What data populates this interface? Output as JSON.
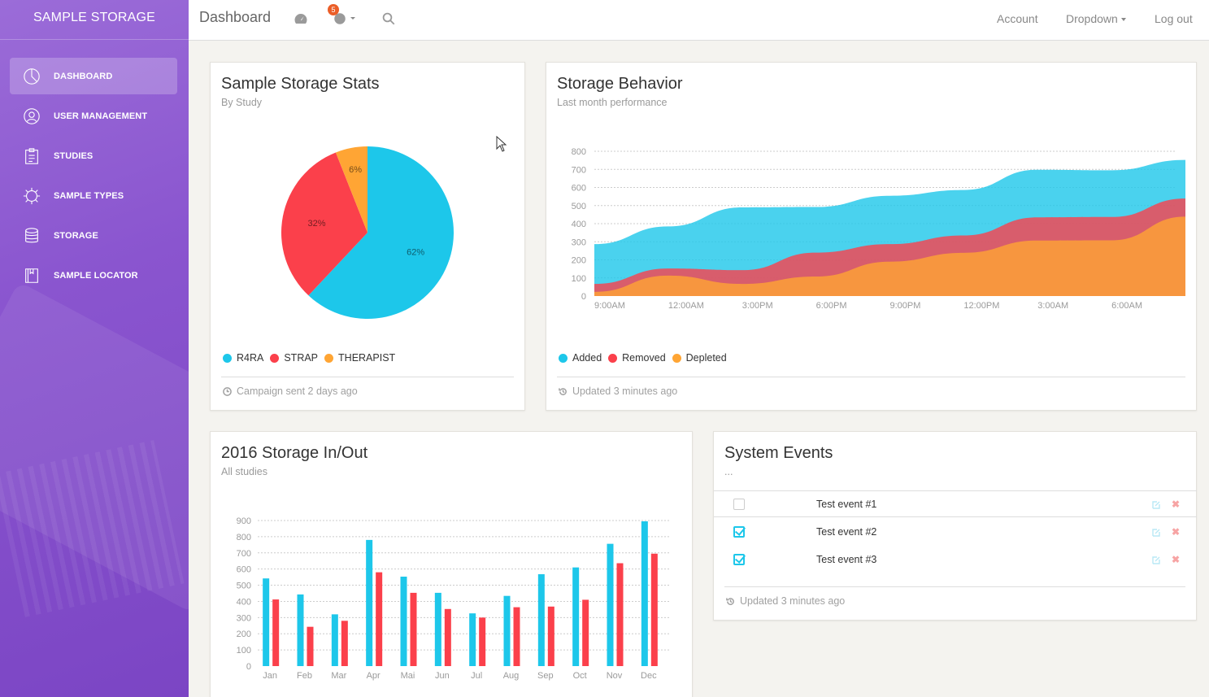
{
  "brand": "SAMPLE STORAGE",
  "sidebar": {
    "items": [
      {
        "label": "DASHBOARD",
        "icon": "pie-chart-icon",
        "active": true
      },
      {
        "label": "USER MANAGEMENT",
        "icon": "user-icon",
        "active": false
      },
      {
        "label": "STUDIES",
        "icon": "clipboard-icon",
        "active": false
      },
      {
        "label": "SAMPLE TYPES",
        "icon": "gear-icon",
        "active": false
      },
      {
        "label": "STORAGE",
        "icon": "database-icon",
        "active": false
      },
      {
        "label": "SAMPLE LOCATOR",
        "icon": "book-icon",
        "active": false
      }
    ]
  },
  "topbar": {
    "title": "Dashboard",
    "notification_count": "5",
    "account": "Account",
    "dropdown": "Dropdown",
    "logout": "Log out"
  },
  "colors": {
    "cyan": "#1dc7ea",
    "red": "#fb404b",
    "orange": "#ffa534",
    "purple": "#8a55cf"
  },
  "card1": {
    "title": "Sample Storage Stats",
    "subtitle": "By Study",
    "footer": "Campaign sent 2 days ago"
  },
  "card2": {
    "title": "Storage Behavior",
    "subtitle": "Last month performance",
    "footer": "Updated 3 minutes ago"
  },
  "card3": {
    "title": "2016 Storage In/Out",
    "subtitle": "All studies"
  },
  "card4": {
    "title": "System Events",
    "subtitle": "...",
    "footer": "Updated 3 minutes ago",
    "events": [
      {
        "label": "Test event #1",
        "checked": false
      },
      {
        "label": "Test event #2",
        "checked": true
      },
      {
        "label": "Test event #3",
        "checked": true
      }
    ]
  },
  "chart_data": [
    {
      "type": "pie",
      "categories": [
        "R4RA",
        "STRAP",
        "THERAPIST"
      ],
      "values": [
        62,
        32,
        6
      ],
      "labels": [
        "62%",
        "32%",
        "6%"
      ],
      "colors": [
        "#1dc7ea",
        "#fb404b",
        "#ffa534"
      ],
      "legend": "bottom-left"
    },
    {
      "type": "area",
      "x": [
        "9:00AM",
        "12:00AM",
        "3:00PM",
        "6:00PM",
        "9:00PM",
        "12:00PM",
        "3:00AM",
        "6:00AM",
        ""
      ],
      "series": [
        {
          "name": "Added",
          "values": [
            287,
            385,
            490,
            492,
            554,
            586,
            698,
            695,
            752
          ],
          "color": "#1dc7ea"
        },
        {
          "name": "Removed",
          "values": [
            67,
            152,
            143,
            240,
            287,
            335,
            435,
            437,
            539
          ],
          "color": "#fb404b"
        },
        {
          "name": "Depleted",
          "values": [
            23,
            113,
            67,
            108,
            190,
            239,
            307,
            308,
            439
          ],
          "color": "#ffa534"
        }
      ],
      "ylim": [
        0,
        800
      ],
      "yticks": [
        0,
        100,
        200,
        300,
        400,
        500,
        600,
        700,
        800
      ],
      "grid": true,
      "legend": "bottom-left"
    },
    {
      "type": "bar",
      "categories": [
        "Jan",
        "Feb",
        "Mar",
        "Apr",
        "Mai",
        "Jun",
        "Jul",
        "Aug",
        "Sep",
        "Oct",
        "Nov",
        "Dec"
      ],
      "series": [
        {
          "values": [
            542,
            443,
            320,
            780,
            553,
            453,
            326,
            434,
            568,
            610,
            756,
            895
          ],
          "color": "#1dc7ea"
        },
        {
          "values": [
            412,
            243,
            280,
            580,
            453,
            353,
            300,
            364,
            368,
            410,
            636,
            695
          ],
          "color": "#fb404b"
        }
      ],
      "ylim": [
        0,
        900
      ],
      "yticks": [
        0,
        100,
        200,
        300,
        400,
        500,
        600,
        700,
        800,
        900
      ],
      "grid": true
    }
  ]
}
